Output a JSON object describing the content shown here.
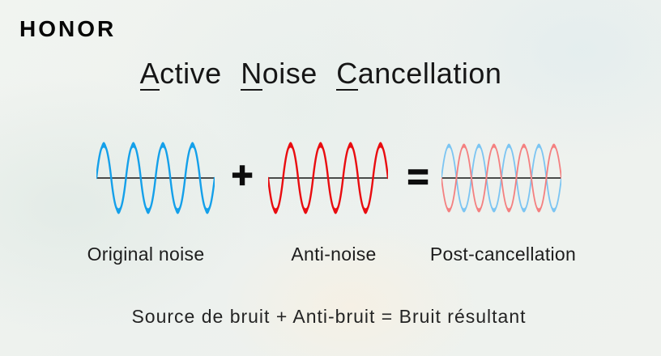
{
  "brand": {
    "logo": "HONOR"
  },
  "title": {
    "full_text": "Active Noise Cancellation",
    "words": [
      {
        "initial": "A",
        "rest": "ctive"
      },
      {
        "initial": "N",
        "rest": "oise"
      },
      {
        "initial": "C",
        "rest": "ancellation"
      }
    ]
  },
  "equation": {
    "plus": "+",
    "equals": "="
  },
  "waves": {
    "original": {
      "label": "Original noise",
      "type": "sine",
      "cycles": 4,
      "phase": "up",
      "color": "#14a0ea"
    },
    "anti": {
      "label": "Anti-noise",
      "type": "sine",
      "cycles": 4,
      "phase": "down",
      "color": "#e90c10"
    },
    "result": {
      "label": "Post-cancellation",
      "type": "sine-pair",
      "cycles": 4,
      "components": [
        {
          "phase": "up",
          "color": "#7cc5f2"
        },
        {
          "phase": "down",
          "color": "#f48080"
        }
      ]
    }
  },
  "caption": "Source de bruit + Anti-bruit = Bruit résultant",
  "colors": {
    "axis": "#141414",
    "text": "#1c1c1c",
    "background": "#eef1ed",
    "wave_blue": "#14a0ea",
    "wave_red": "#e90c10",
    "wave_blue_light": "#7cc5f2",
    "wave_red_light": "#f48080"
  }
}
